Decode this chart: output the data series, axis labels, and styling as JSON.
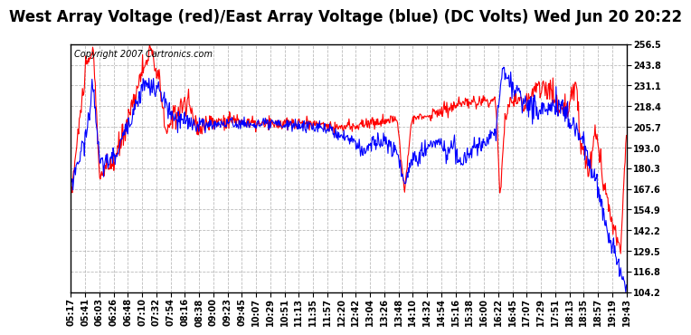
{
  "title": "West Array Voltage (red)/East Array Voltage (blue) (DC Volts) Wed Jun 20 20:22",
  "copyright": "Copyright 2007 Cartronics.com",
  "ylim": [
    104.2,
    256.5
  ],
  "yticks": [
    104.2,
    116.8,
    129.5,
    142.2,
    154.9,
    167.6,
    180.3,
    193.0,
    205.7,
    218.4,
    231.1,
    243.8,
    256.5
  ],
  "xtick_labels": [
    "05:17",
    "05:41",
    "06:03",
    "06:26",
    "06:48",
    "07:10",
    "07:32",
    "07:54",
    "08:16",
    "08:38",
    "09:00",
    "09:23",
    "09:45",
    "10:07",
    "10:29",
    "10:51",
    "11:13",
    "11:35",
    "11:57",
    "12:20",
    "12:42",
    "13:04",
    "13:26",
    "13:48",
    "14:10",
    "14:32",
    "14:54",
    "15:16",
    "15:38",
    "16:00",
    "16:22",
    "16:45",
    "17:07",
    "17:29",
    "17:51",
    "18:13",
    "18:35",
    "18:57",
    "19:19",
    "19:43"
  ],
  "red_color": "#ff0000",
  "blue_color": "#0000ff",
  "bg_color": "#ffffff",
  "grid_color": "#aaaaaa",
  "title_fontsize": 12,
  "copyright_fontsize": 7,
  "tick_fontsize": 7,
  "line_width": 0.8
}
